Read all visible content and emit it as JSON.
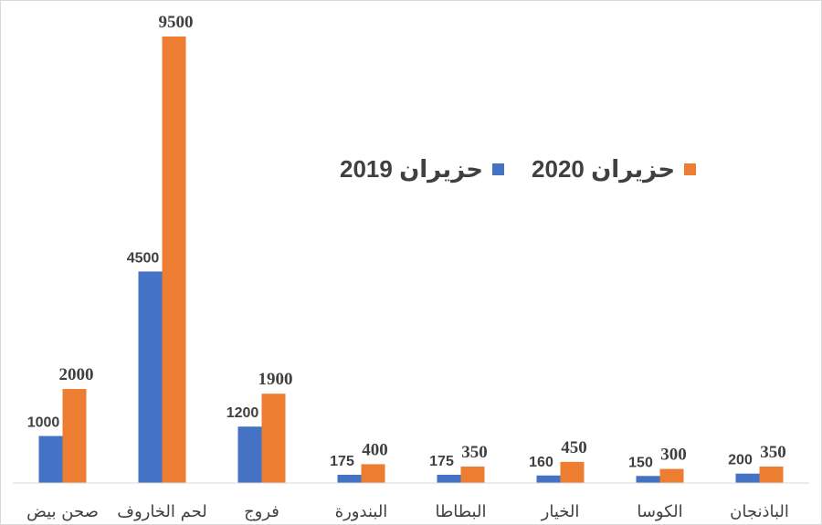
{
  "chart_data": {
    "type": "bar",
    "categories": [
      "صحن بيض",
      "لحم الخاروف",
      "فروج",
      "البندورة",
      "البطاطا",
      "الخيار",
      "الكوسا",
      "الباذنجان"
    ],
    "series": [
      {
        "name": "حزيران 2019",
        "color": "#4472C4",
        "values": [
          1000,
          4500,
          1200,
          175,
          175,
          160,
          150,
          200
        ]
      },
      {
        "name": "حزيران 2020",
        "color": "#ED7D31",
        "values": [
          2000,
          9500,
          1900,
          400,
          350,
          450,
          300,
          350
        ]
      }
    ],
    "ylim": [
      0,
      9500
    ],
    "legend_position": "top-right",
    "grid": false,
    "data_labels": true
  }
}
